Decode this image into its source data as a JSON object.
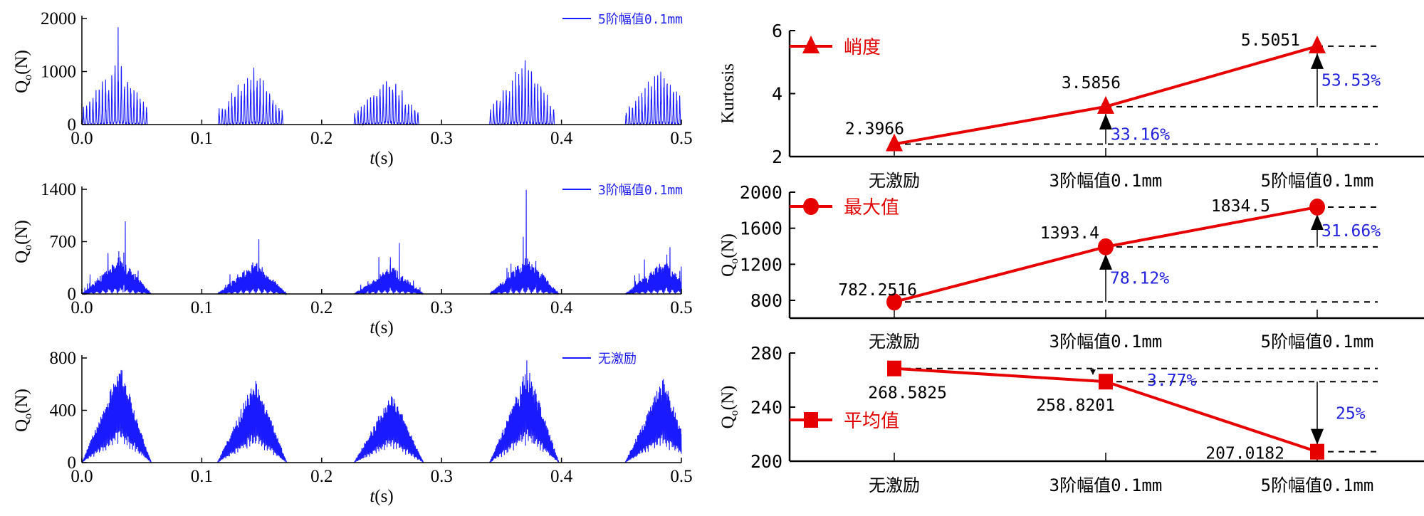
{
  "colors": {
    "signal": "#1a1aff",
    "series": "#e60000",
    "percent": "#2222dd",
    "axis": "#000000"
  },
  "chart_data": [
    {
      "type": "line",
      "panel": "time-signal-5th",
      "legend": "5阶幅值0.1mm",
      "xlabel": {
        "var": "t",
        "unit": "(s)"
      },
      "ylabel": {
        "main": "Q",
        "sub": "o",
        "unit": "(N)"
      },
      "xlim": [
        0,
        0.5
      ],
      "ylim": [
        0,
        2000
      ],
      "xticks": [
        "0.0",
        "0.1",
        "0.2",
        "0.3",
        "0.4",
        "0.5"
      ],
      "yticks": [
        "0",
        "1000",
        "2000"
      ],
      "signal": {
        "style": "impulsive",
        "peak": 1834.5,
        "typical_peak": 1200,
        "burst_starts": [
          0.0,
          0.113,
          0.227,
          0.34,
          0.453
        ],
        "burst_width": 0.055
      }
    },
    {
      "type": "line",
      "panel": "time-signal-3rd",
      "legend": "3阶幅值0.1mm",
      "xlabel": {
        "var": "t",
        "unit": "(s)"
      },
      "ylabel": {
        "main": "Q",
        "sub": "o",
        "unit": "(N)"
      },
      "xlim": [
        0,
        0.5
      ],
      "ylim": [
        0,
        1400
      ],
      "xticks": [
        "0.0",
        "0.1",
        "0.2",
        "0.3",
        "0.4",
        "0.5"
      ],
      "yticks": [
        "0",
        "700",
        "1400"
      ],
      "signal": {
        "style": "mixed",
        "peak": 1393.4,
        "typical_peak": 900,
        "burst_starts": [
          0.0,
          0.113,
          0.227,
          0.34,
          0.453
        ],
        "burst_width": 0.058
      }
    },
    {
      "type": "line",
      "panel": "time-signal-none",
      "legend": "无激励",
      "xlabel": {
        "var": "t",
        "unit": "(s)"
      },
      "ylabel": {
        "main": "Q",
        "sub": "o",
        "unit": "(N)"
      },
      "xlim": [
        0,
        0.5
      ],
      "ylim": [
        0,
        800
      ],
      "xticks": [
        "0.0",
        "0.1",
        "0.2",
        "0.3",
        "0.4",
        "0.5"
      ],
      "yticks": [
        "0",
        "400",
        "800"
      ],
      "signal": {
        "style": "dense",
        "peak": 782.2516,
        "typical_peak": 740,
        "burst_starts": [
          0.0,
          0.113,
          0.227,
          0.34,
          0.453
        ],
        "burst_width": 0.058
      }
    },
    {
      "type": "line",
      "panel": "kurtosis",
      "legend": "峭度",
      "marker": "triangle",
      "ylabel": {
        "main": "Kurtosis"
      },
      "categories": [
        "无激励",
        "3阶幅值0.1mm",
        "5阶幅值0.1mm"
      ],
      "values": [
        2.3966,
        3.5856,
        5.5051
      ],
      "value_labels": [
        "2.3966",
        "3.5856",
        "5.5051"
      ],
      "ylim": [
        2,
        6
      ],
      "yticks": [
        "2",
        "4",
        "6"
      ],
      "changes": [
        {
          "from": 0,
          "to": 1,
          "text": "33.16%"
        },
        {
          "from": 1,
          "to": 2,
          "text": "53.53%"
        }
      ]
    },
    {
      "type": "line",
      "panel": "maximum",
      "legend": "最大值",
      "marker": "circle",
      "ylabel": {
        "main": "Q",
        "sub": "o",
        "unit": "(N)"
      },
      "categories": [
        "无激励",
        "3阶幅值0.1mm",
        "5阶幅值0.1mm"
      ],
      "values": [
        782.2516,
        1393.4,
        1834.5
      ],
      "value_labels": [
        "782.2516",
        "1393.4",
        "1834.5"
      ],
      "ylim": [
        600,
        2000
      ],
      "yticks": [
        "800",
        "1200",
        "1600",
        "2000"
      ],
      "changes": [
        {
          "from": 0,
          "to": 1,
          "text": "78.12%"
        },
        {
          "from": 1,
          "to": 2,
          "text": "31.66%"
        }
      ]
    },
    {
      "type": "line",
      "panel": "mean",
      "legend": "平均值",
      "marker": "square",
      "ylabel": {
        "main": "Q",
        "sub": "o",
        "unit": "(N)"
      },
      "categories": [
        "无激励",
        "3阶幅值0.1mm",
        "5阶幅值0.1mm"
      ],
      "values": [
        268.5825,
        258.8201,
        207.0182
      ],
      "value_labels": [
        "268.5825",
        "258.8201",
        "207.0182"
      ],
      "ylim": [
        200,
        280
      ],
      "yticks": [
        "200",
        "240",
        "280"
      ],
      "changes": [
        {
          "from": 0,
          "to": 1,
          "text": "3.77%"
        },
        {
          "from": 1,
          "to": 2,
          "text": "25%"
        }
      ]
    }
  ]
}
